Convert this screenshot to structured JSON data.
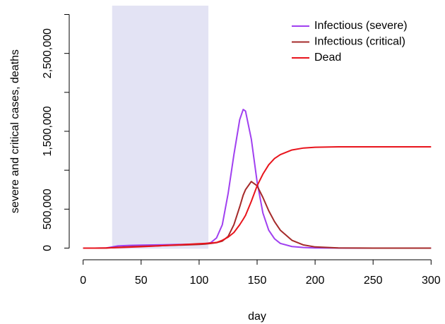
{
  "chart_data": {
    "type": "line",
    "x_label": "day",
    "y_label": "severe and critical cases, deaths",
    "x": [
      0,
      10,
      20,
      25,
      30,
      40,
      50,
      60,
      70,
      80,
      90,
      100,
      105,
      110,
      115,
      120,
      125,
      130,
      135,
      138,
      140,
      145,
      150,
      155,
      160,
      165,
      170,
      180,
      190,
      200,
      220,
      250,
      300
    ],
    "series": [
      {
        "name": "Infectious (severe)",
        "color": "#a040f0",
        "values": [
          0,
          0,
          2000,
          15000,
          28000,
          35000,
          38000,
          40000,
          43000,
          46000,
          48000,
          50000,
          55000,
          70000,
          130000,
          300000,
          700000,
          1200000,
          1650000,
          1780000,
          1760000,
          1400000,
          850000,
          450000,
          230000,
          120000,
          60000,
          20000,
          7000,
          2000,
          300,
          0,
          0
        ]
      },
      {
        "name": "Infectious (critical)",
        "color": "#a52a2a",
        "values": [
          0,
          0,
          1000,
          5000,
          10000,
          17000,
          22000,
          27000,
          32000,
          37000,
          42000,
          47000,
          52000,
          60000,
          70000,
          90000,
          150000,
          300000,
          530000,
          680000,
          750000,
          855000,
          800000,
          650000,
          480000,
          340000,
          230000,
          100000,
          40000,
          15000,
          2000,
          0,
          0
        ]
      },
      {
        "name": "Dead",
        "color": "#e8141c",
        "values": [
          0,
          0,
          2000,
          4000,
          6000,
          12000,
          18000,
          25000,
          32000,
          40000,
          48000,
          56000,
          60000,
          65000,
          72000,
          100000,
          140000,
          200000,
          300000,
          370000,
          420000,
          600000,
          800000,
          950000,
          1070000,
          1150000,
          1200000,
          1260000,
          1285000,
          1295000,
          1300000,
          1300000,
          1300000
        ]
      }
    ],
    "highlight": {
      "x": [
        25,
        108
      ],
      "color": "#e3e3f4"
    },
    "xlim": [
      -12,
      312
    ],
    "ylim": [
      -150000,
      3050000
    ],
    "xticks": [
      0,
      50,
      100,
      150,
      200,
      250,
      300
    ],
    "yticks": [
      0,
      {
        "value": 500000,
        "label": "500,000"
      },
      {
        "value": 1000000,
        "label": null
      },
      {
        "value": 1500000,
        "label": "1,500,000"
      },
      {
        "value": 2000000,
        "label": null
      },
      {
        "value": 2500000,
        "label": "2,500,000"
      },
      {
        "value": 3000000,
        "label": null
      }
    ],
    "legend": "top-right"
  }
}
